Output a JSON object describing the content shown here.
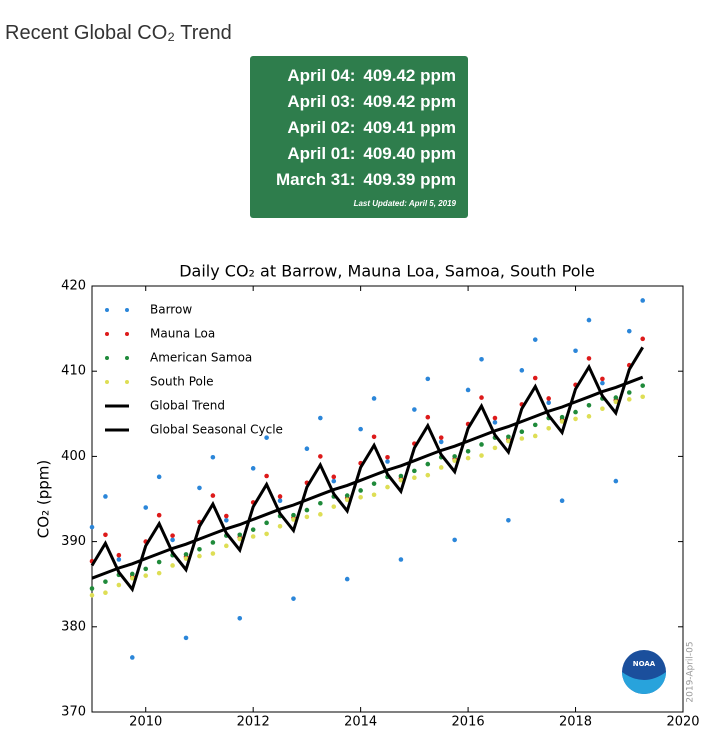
{
  "header": {
    "title": "Recent Global CO₂ Trend"
  },
  "readings": [
    {
      "date": "April 04:",
      "value": "409.42 ppm"
    },
    {
      "date": "April 03:",
      "value": "409.42 ppm"
    },
    {
      "date": "April 02:",
      "value": "409.41 ppm"
    },
    {
      "date": "April 01:",
      "value": "409.40 ppm"
    },
    {
      "date": "March 31:",
      "value": "409.39 ppm"
    }
  ],
  "last_updated": "Last Updated: April 5, 2019",
  "watermark": "2019-April-05",
  "logo_text": "NOAA",
  "chart_data": {
    "type": "scatter",
    "title": "Daily CO₂ at Barrow, Mauna Loa, Samoa, South Pole",
    "y_label": "CO₂ (ppm)",
    "xlim": [
      2009,
      2020
    ],
    "xticks": [
      2010,
      2012,
      2014,
      2016,
      2018,
      2020
    ],
    "ylim": [
      370,
      420
    ],
    "yticks": [
      370,
      380,
      390,
      400,
      410,
      420
    ],
    "legend": "upper-left",
    "x": [
      2009,
      2009.25,
      2009.5,
      2009.75,
      2010,
      2010.25,
      2010.5,
      2010.75,
      2011,
      2011.25,
      2011.5,
      2011.75,
      2012,
      2012.25,
      2012.5,
      2012.75,
      2013,
      2013.25,
      2013.5,
      2013.75,
      2014,
      2014.25,
      2014.5,
      2014.75,
      2015,
      2015.25,
      2015.5,
      2015.75,
      2016,
      2016.25,
      2016.5,
      2016.75,
      2017,
      2017.25,
      2017.5,
      2017.75,
      2018,
      2018.25,
      2018.5,
      2018.75,
      2019,
      2019.25
    ],
    "series": [
      {
        "name": "Barrow",
        "mode": "markers",
        "color": "#2b86d9",
        "values": [
          391.7,
          395.3,
          387.9,
          376.4,
          394.0,
          397.6,
          390.2,
          378.7,
          396.3,
          399.9,
          392.5,
          381.0,
          398.6,
          402.2,
          394.8,
          383.3,
          400.9,
          404.5,
          397.1,
          385.6,
          403.2,
          406.8,
          399.4,
          387.9,
          405.5,
          409.1,
          401.7,
          390.2,
          407.8,
          411.4,
          404.0,
          392.5,
          410.1,
          413.7,
          406.3,
          394.8,
          412.4,
          416.0,
          408.6,
          397.1,
          414.7,
          418.3
        ]
      },
      {
        "name": "Mauna Loa",
        "mode": "markers",
        "color": "#dd1a1a",
        "values": [
          387.7,
          390.8,
          388.4,
          385.9,
          390.0,
          393.1,
          390.7,
          388.2,
          392.3,
          395.4,
          393.0,
          390.5,
          394.6,
          397.7,
          395.3,
          392.8,
          396.9,
          400.0,
          397.6,
          395.1,
          399.2,
          402.3,
          399.9,
          397.4,
          401.5,
          404.6,
          402.2,
          399.7,
          403.8,
          406.9,
          404.5,
          402.0,
          406.1,
          409.2,
          406.8,
          404.3,
          408.4,
          411.5,
          409.1,
          406.6,
          410.7,
          413.8
        ]
      },
      {
        "name": "American Samoa",
        "mode": "markers",
        "color": "#1f8a3a",
        "values": [
          384.5,
          385.3,
          386.1,
          386.2,
          386.8,
          387.6,
          388.4,
          388.5,
          389.1,
          389.9,
          390.7,
          390.8,
          391.4,
          392.2,
          393.0,
          393.1,
          393.7,
          394.5,
          395.3,
          395.4,
          396.0,
          396.8,
          397.6,
          397.7,
          398.3,
          399.1,
          399.9,
          400.0,
          400.6,
          401.4,
          402.2,
          402.3,
          402.9,
          403.7,
          404.5,
          404.6,
          405.2,
          406.0,
          406.8,
          406.9,
          407.5,
          408.3
        ]
      },
      {
        "name": "South Pole",
        "mode": "markers",
        "color": "#dede55",
        "values": [
          383.7,
          384.0,
          384.9,
          385.7,
          386.0,
          386.3,
          387.2,
          388.0,
          388.3,
          388.6,
          389.5,
          390.3,
          390.6,
          390.9,
          391.8,
          392.6,
          392.9,
          393.2,
          394.1,
          394.9,
          395.2,
          395.5,
          396.4,
          397.2,
          397.5,
          397.8,
          398.7,
          399.5,
          399.8,
          400.1,
          401.0,
          401.8,
          402.1,
          402.4,
          403.3,
          404.1,
          404.4,
          404.7,
          405.6,
          406.4,
          406.7,
          407.0
        ]
      },
      {
        "name": "Global Trend",
        "mode": "line",
        "color": "#000000",
        "values": [
          385.7,
          386.3,
          386.9,
          387.4,
          388.0,
          388.6,
          389.2,
          389.7,
          390.3,
          390.9,
          391.5,
          392.0,
          392.6,
          393.2,
          393.8,
          394.3,
          394.9,
          395.5,
          396.1,
          396.6,
          397.2,
          397.8,
          398.4,
          398.9,
          399.5,
          400.1,
          400.7,
          401.2,
          401.8,
          402.4,
          403.0,
          403.5,
          404.1,
          404.7,
          405.3,
          405.8,
          406.4,
          407.0,
          407.6,
          408.1,
          408.7,
          409.3
        ]
      },
      {
        "name": "Global Seasonal Cycle",
        "mode": "line",
        "color": "#000000",
        "values": [
          387.2,
          389.8,
          386.4,
          384.4,
          389.5,
          392.1,
          388.7,
          386.7,
          391.8,
          394.4,
          391.0,
          389.0,
          394.1,
          396.7,
          393.3,
          391.3,
          396.4,
          399.0,
          395.6,
          393.6,
          398.7,
          401.3,
          397.9,
          395.9,
          401.0,
          403.6,
          400.2,
          398.2,
          403.3,
          405.9,
          402.5,
          400.5,
          405.6,
          408.2,
          404.8,
          402.8,
          407.9,
          410.5,
          407.1,
          405.1,
          410.2,
          412.8
        ]
      }
    ]
  }
}
